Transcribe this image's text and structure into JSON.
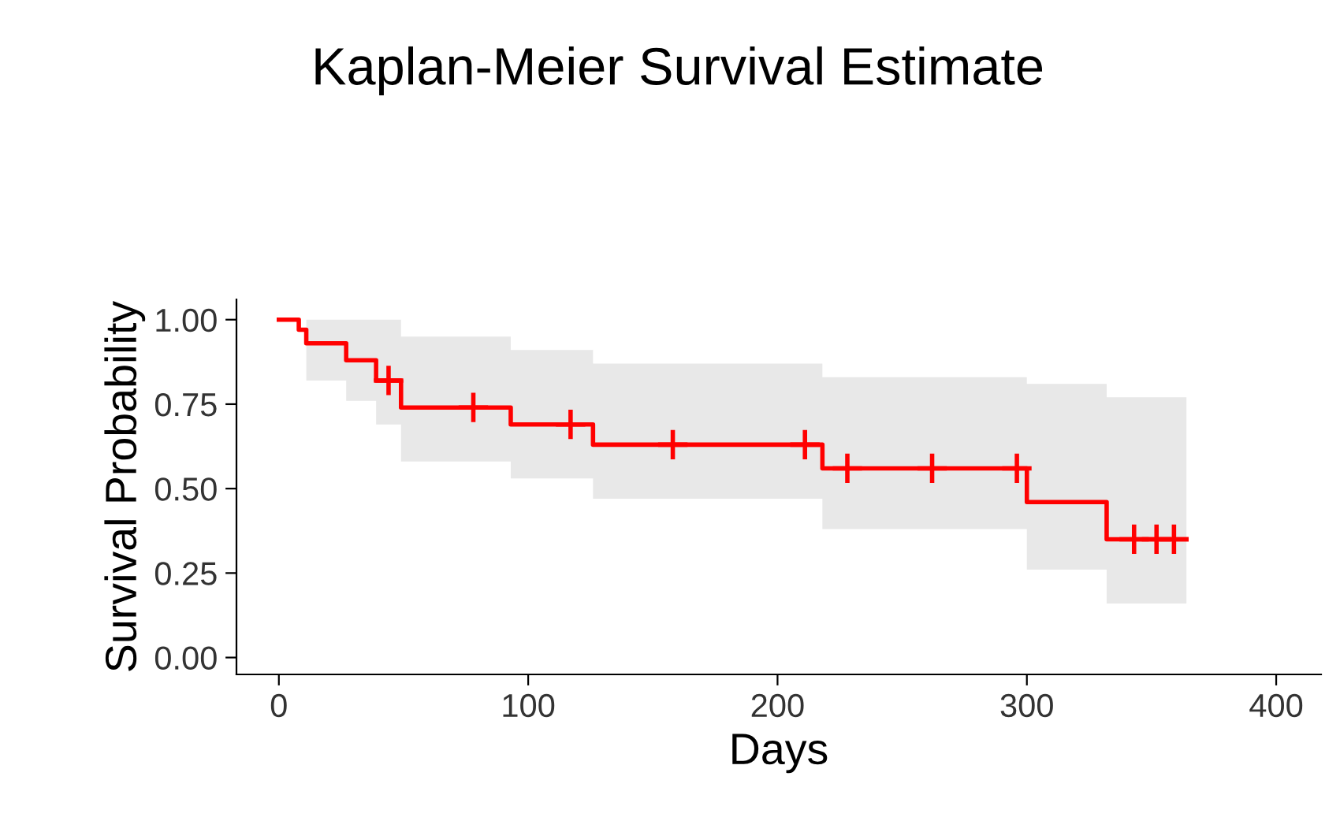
{
  "chart_data": {
    "type": "step",
    "title": "Kaplan-Meier Survival Estimate",
    "xlabel": "Days",
    "ylabel": "Survival Probability",
    "xlim": [
      -17,
      418
    ],
    "ylim": [
      -0.05,
      1.06
    ],
    "xticks": [
      0,
      100,
      200,
      300,
      400
    ],
    "yticks": [
      {
        "value": 0,
        "label": "0.00"
      },
      {
        "value": 0.25,
        "label": "0.25"
      },
      {
        "value": 0.5,
        "label": "0.50"
      },
      {
        "value": 0.75,
        "label": "0.75"
      },
      {
        "value": 1,
        "label": "1.00"
      }
    ],
    "grid": false,
    "legend": false,
    "series": [
      {
        "color": "#ff0000",
        "marker": "none",
        "line_style": "solid",
        "x": [
          0,
          8,
          11,
          27,
          39,
          49,
          93,
          126,
          218,
          300,
          332,
          364
        ],
        "values": [
          1,
          0.97,
          0.93,
          0.88,
          0.82,
          0.74,
          0.69,
          0.63,
          0.56,
          0.46,
          0.35,
          0.35
        ],
        "lower": [
          1,
          0.97,
          0.82,
          0.76,
          0.69,
          0.58,
          0.53,
          0.47,
          0.38,
          0.26,
          0.16,
          0.16
        ],
        "upper": [
          1,
          0.97,
          1,
          1,
          1,
          0.95,
          0.91,
          0.87,
          0.83,
          0.81,
          0.77,
          0.77
        ]
      },
      {
        "type": "scatter",
        "color": "#ff0000",
        "marker": "cross",
        "x": [
          44,
          78,
          117,
          158,
          211,
          228,
          262,
          296,
          343,
          352,
          359
        ],
        "values": [
          0.82,
          0.74,
          0.69,
          0.63,
          0.63,
          0.56,
          0.56,
          0.56,
          0.35,
          0.35,
          0.35
        ]
      }
    ]
  }
}
